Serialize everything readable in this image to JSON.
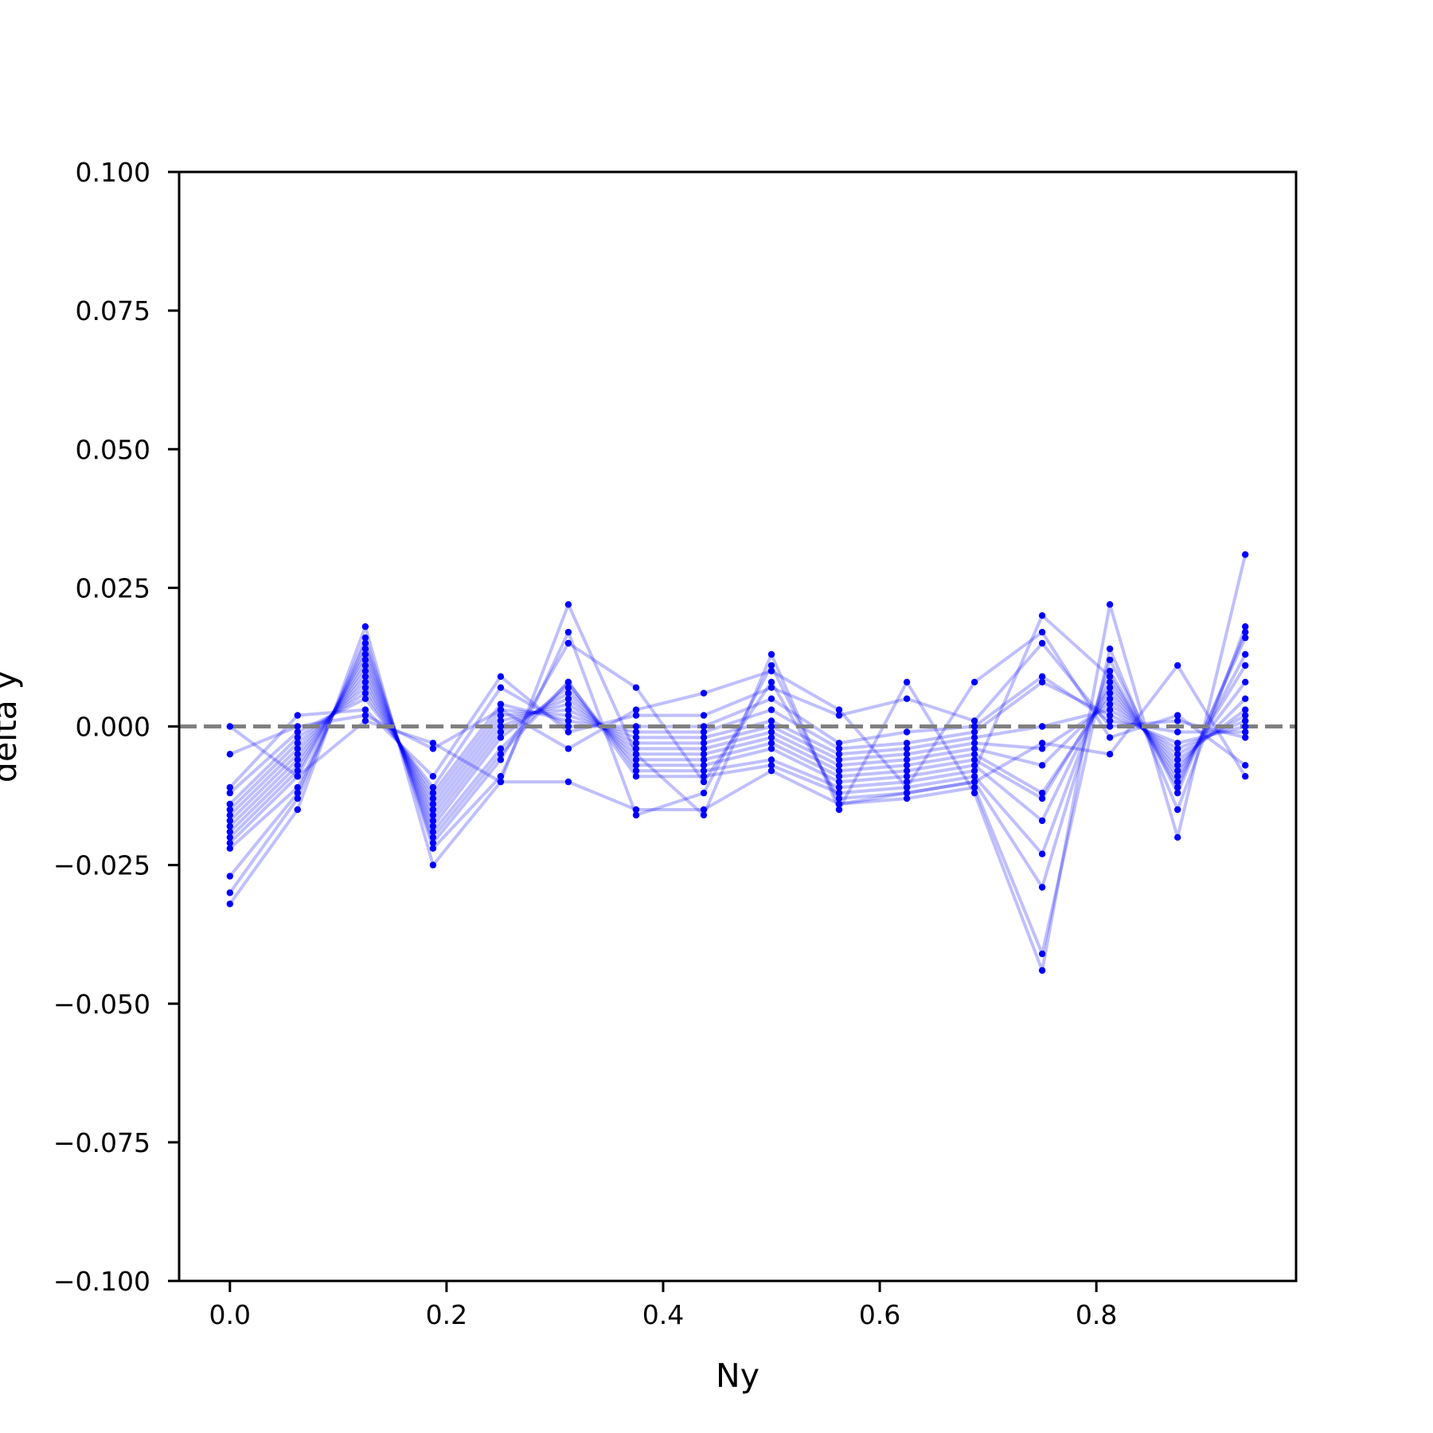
{
  "chart_data": {
    "type": "line",
    "title": "",
    "xlabel": "Ny",
    "ylabel": "delta y",
    "xlim": [
      -0.0469,
      0.9844
    ],
    "ylim": [
      -0.1,
      0.1
    ],
    "x_ticks": [
      "0.0",
      "0.2",
      "0.4",
      "0.6",
      "0.8"
    ],
    "y_ticks": [
      "0.100",
      "0.075",
      "0.050",
      "0.025",
      "0.000",
      "−0.025",
      "−0.050",
      "−0.075",
      "−0.100"
    ],
    "grid": false,
    "legend": "none",
    "series_color": "#0000ff",
    "series_line_alpha": 0.25,
    "reference_line": {
      "y": 0.0,
      "style": "dashed",
      "color": "#808080"
    },
    "x": [
      0.0,
      0.0625,
      0.125,
      0.1875,
      0.25,
      0.3125,
      0.375,
      0.4375,
      0.5,
      0.5625,
      0.625,
      0.6875,
      0.75,
      0.8125,
      0.875,
      0.9375
    ],
    "series": [
      {
        "values": [
          -0.032,
          -0.015,
          0.018,
          -0.025,
          -0.01,
          0.022,
          -0.005,
          -0.016,
          0.013,
          -0.015,
          0.008,
          -0.012,
          -0.044,
          0.022,
          -0.02,
          0.031
        ]
      },
      {
        "values": [
          -0.03,
          -0.013,
          0.016,
          -0.022,
          -0.009,
          0.017,
          -0.016,
          -0.012,
          0.011,
          -0.014,
          -0.013,
          -0.011,
          -0.041,
          0.014,
          -0.015,
          0.018
        ]
      },
      {
        "values": [
          -0.027,
          -0.012,
          0.015,
          -0.021,
          -0.006,
          0.015,
          0.007,
          -0.01,
          0.008,
          -0.013,
          -0.012,
          -0.01,
          -0.029,
          0.012,
          -0.012,
          0.017
        ]
      },
      {
        "values": [
          -0.022,
          -0.011,
          0.014,
          -0.02,
          -0.005,
          0.008,
          -0.009,
          -0.009,
          -0.007,
          -0.012,
          -0.011,
          -0.009,
          -0.023,
          0.01,
          -0.011,
          0.016
        ]
      },
      {
        "values": [
          -0.021,
          -0.009,
          0.013,
          -0.019,
          -0.004,
          0.008,
          -0.008,
          -0.008,
          -0.006,
          -0.011,
          -0.01,
          -0.008,
          0.02,
          0.009,
          -0.01,
          0.013
        ]
      },
      {
        "values": [
          -0.02,
          -0.008,
          0.012,
          -0.018,
          -0.002,
          0.007,
          -0.007,
          -0.007,
          -0.004,
          -0.01,
          -0.009,
          -0.007,
          -0.017,
          0.008,
          -0.009,
          0.011
        ]
      },
      {
        "values": [
          -0.019,
          -0.007,
          0.011,
          -0.017,
          -0.001,
          0.006,
          -0.006,
          -0.006,
          -0.003,
          -0.009,
          -0.008,
          -0.006,
          -0.013,
          0.007,
          -0.008,
          0.008
        ]
      },
      {
        "values": [
          -0.018,
          -0.006,
          0.01,
          -0.016,
          0.0,
          0.005,
          -0.005,
          -0.005,
          -0.002,
          -0.008,
          -0.007,
          -0.005,
          -0.012,
          0.006,
          -0.007,
          0.005
        ]
      },
      {
        "values": [
          -0.017,
          -0.005,
          0.009,
          -0.015,
          0.001,
          0.004,
          -0.004,
          -0.004,
          -0.001,
          -0.007,
          -0.006,
          -0.004,
          -0.007,
          0.005,
          -0.006,
          0.003
        ]
      },
      {
        "values": [
          -0.016,
          -0.004,
          0.008,
          -0.014,
          0.002,
          0.003,
          -0.003,
          -0.003,
          0.0,
          -0.006,
          -0.005,
          -0.003,
          -0.004,
          0.004,
          -0.005,
          0.002
        ]
      },
      {
        "values": [
          -0.015,
          -0.003,
          0.007,
          -0.013,
          0.003,
          0.002,
          -0.002,
          -0.002,
          0.001,
          -0.005,
          -0.004,
          -0.002,
          0.0,
          0.003,
          -0.004,
          0.001
        ]
      },
      {
        "values": [
          -0.014,
          -0.002,
          0.006,
          -0.012,
          0.004,
          0.001,
          -0.001,
          -0.001,
          0.003,
          -0.004,
          -0.003,
          -0.001,
          0.008,
          0.002,
          -0.003,
          0.0
        ]
      },
      {
        "values": [
          -0.012,
          -0.001,
          0.005,
          -0.011,
          0.007,
          0.0,
          0.0,
          0.0,
          0.005,
          -0.003,
          -0.001,
          0.0,
          0.009,
          0.001,
          -0.001,
          -0.001
        ]
      },
      {
        "values": [
          -0.011,
          0.002,
          0.003,
          -0.009,
          0.009,
          -0.001,
          0.002,
          0.002,
          0.007,
          0.002,
          0.005,
          0.001,
          0.015,
          0.0,
          0.001,
          -0.002
        ]
      },
      {
        "values": [
          -0.005,
          0.0,
          0.002,
          -0.004,
          0.003,
          -0.004,
          0.003,
          0.006,
          0.01,
          0.003,
          -0.011,
          0.008,
          0.017,
          -0.002,
          0.002,
          -0.007
        ]
      },
      {
        "values": [
          0.0,
          -0.009,
          0.001,
          -0.003,
          -0.01,
          -0.01,
          -0.015,
          -0.015,
          -0.008,
          -0.014,
          -0.012,
          -0.01,
          -0.003,
          -0.005,
          0.011,
          -0.009
        ]
      }
    ]
  }
}
